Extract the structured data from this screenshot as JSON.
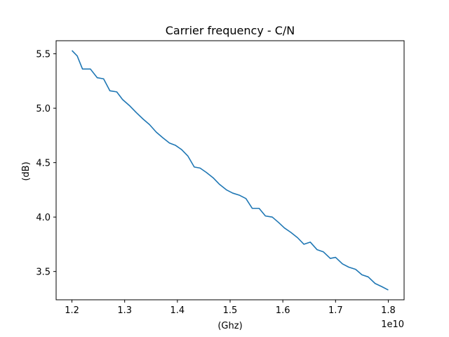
{
  "chart_data": {
    "type": "line",
    "title": "Carrier frequency - C/N",
    "xlabel": "(Ghz)",
    "ylabel": "(dB)",
    "x_offset_label": "1e10",
    "xlim": [
      1.17,
      1.83
    ],
    "ylim": [
      3.24,
      5.62
    ],
    "x_ticks": [
      1.2,
      1.3,
      1.4,
      1.5,
      1.6,
      1.7,
      1.8
    ],
    "x_tick_labels": [
      "1.2",
      "1.3",
      "1.4",
      "1.5",
      "1.6",
      "1.7",
      "1.8"
    ],
    "y_ticks": [
      3.5,
      4.0,
      4.5,
      5.0,
      5.5
    ],
    "y_tick_labels": [
      "3.5",
      "4.0",
      "4.5",
      "5.0",
      "5.5"
    ],
    "grid": false,
    "series": [
      {
        "color": "#1f77b4",
        "x": [
          1.2,
          1.21,
          1.22,
          1.235,
          1.248,
          1.26,
          1.272,
          1.285,
          1.296,
          1.31,
          1.322,
          1.335,
          1.347,
          1.36,
          1.372,
          1.385,
          1.396,
          1.408,
          1.42,
          1.432,
          1.443,
          1.455,
          1.468,
          1.48,
          1.493,
          1.505,
          1.518,
          1.53,
          1.542,
          1.555,
          1.567,
          1.58,
          1.592,
          1.603,
          1.615,
          1.628,
          1.64,
          1.652,
          1.665,
          1.677,
          1.69,
          1.7,
          1.713,
          1.725,
          1.738,
          1.75,
          1.762,
          1.775,
          1.788,
          1.8
        ],
        "y": [
          5.53,
          5.48,
          5.36,
          5.36,
          5.28,
          5.27,
          5.16,
          5.15,
          5.08,
          5.02,
          4.96,
          4.9,
          4.85,
          4.78,
          4.73,
          4.68,
          4.66,
          4.62,
          4.56,
          4.46,
          4.45,
          4.41,
          4.36,
          4.3,
          4.25,
          4.22,
          4.2,
          4.17,
          4.08,
          4.08,
          4.01,
          4.0,
          3.95,
          3.9,
          3.86,
          3.81,
          3.75,
          3.77,
          3.7,
          3.68,
          3.62,
          3.63,
          3.57,
          3.54,
          3.52,
          3.47,
          3.45,
          3.39,
          3.36,
          3.33
        ]
      }
    ]
  }
}
